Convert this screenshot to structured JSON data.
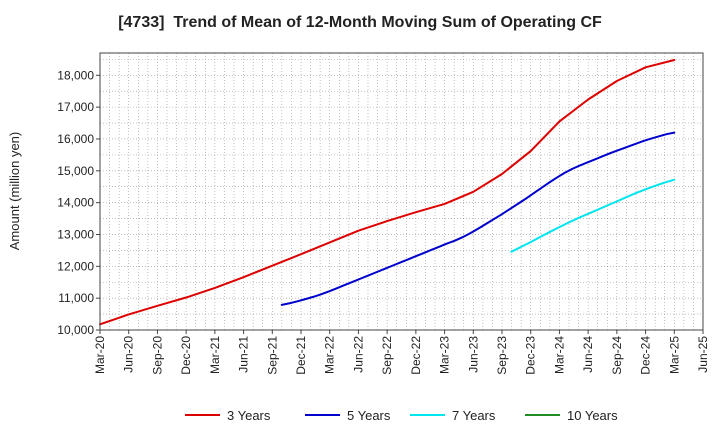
{
  "chart_data": {
    "type": "line",
    "title": "[4733]  Trend of Mean of 12-Month Moving Sum of Operating CF",
    "xlabel": "",
    "ylabel": "Amount (million yen)",
    "ylim": [
      10000,
      18700
    ],
    "yticks": [
      10000,
      11000,
      12000,
      13000,
      14000,
      15000,
      16000,
      17000,
      18000
    ],
    "ytick_labels": [
      "10,000",
      "11,000",
      "12,000",
      "13,000",
      "14,000",
      "15,000",
      "16,000",
      "17,000",
      "18,000"
    ],
    "xtick_labels": [
      "Mar-20",
      "Jun-20",
      "Sep-20",
      "Dec-20",
      "Mar-21",
      "Jun-21",
      "Sep-21",
      "Dec-21",
      "Mar-22",
      "Jun-22",
      "Sep-22",
      "Dec-22",
      "Mar-23",
      "Jun-23",
      "Sep-23",
      "Dec-23",
      "Mar-24",
      "Jun-24",
      "Sep-24",
      "Dec-24",
      "Mar-25",
      "Jun-25"
    ],
    "grid": true,
    "legend_position": "bottom",
    "series": [
      {
        "name": "3 Years",
        "color": "#dd0000",
        "start_index": 0,
        "values": [
          10180,
          10490,
          10760,
          11020,
          11320,
          11660,
          12020,
          12380,
          12750,
          13120,
          13420,
          13700,
          13960,
          14340,
          14900,
          15620,
          16550,
          17240,
          17820,
          18250,
          18480
        ]
      },
      {
        "name": "5 Years",
        "color": "#0000cc",
        "start_index": 6.33,
        "values": [
          10790,
          10840,
          10900,
          10970,
          11040,
          11120,
          11210,
          11310,
          11410,
          11510,
          11610,
          11710,
          11810,
          11910,
          12010,
          12110,
          12210,
          12310,
          12410,
          12510,
          12610,
          12710,
          12800,
          12910,
          13040,
          13180,
          13330,
          13480,
          13630,
          13790,
          13950,
          14110,
          14280,
          14450,
          14620,
          14780,
          14930,
          15060,
          15170,
          15270,
          15370,
          15470,
          15570,
          15660,
          15750,
          15840,
          15930,
          16010,
          16080,
          16150,
          16200
        ]
      },
      {
        "name": "7 Years",
        "color": "#00e5ee",
        "start_index": 14.33,
        "values": [
          12460,
          12610,
          12760,
          12920,
          13080,
          13230,
          13380,
          13520,
          13650,
          13780,
          13910,
          14040,
          14170,
          14300,
          14420,
          14530,
          14630,
          14720
        ]
      },
      {
        "name": "10 Years",
        "color": "#228b22",
        "start_index": 0,
        "values": []
      }
    ]
  }
}
